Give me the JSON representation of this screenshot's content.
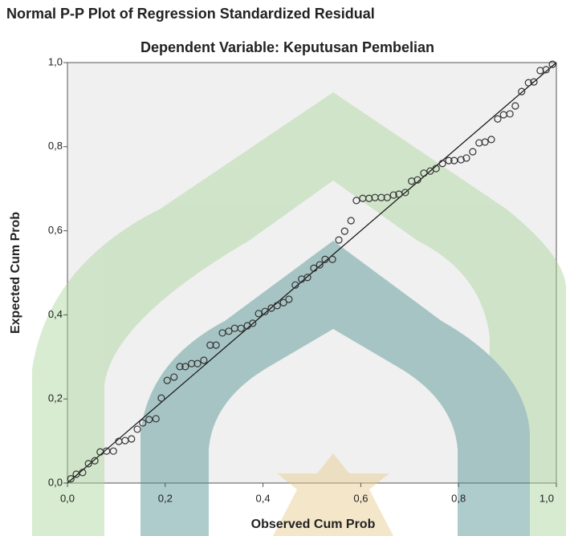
{
  "chart_data": {
    "type": "scatter",
    "title": "Normal P-P Plot of Regression Standardized Residual",
    "subtitle": "Dependent Variable: Keputusan Pembelian",
    "x_label": "Observed Cum Prob",
    "y_label": "Expected Cum Prob",
    "xlim": [
      0,
      1
    ],
    "ylim": [
      0,
      1
    ],
    "xticks": [
      {
        "value": 0,
        "label": "0,0"
      },
      {
        "value": 0.2,
        "label": "0,2"
      },
      {
        "value": 0.4,
        "label": "0,4"
      },
      {
        "value": 0.6,
        "label": "0,6"
      },
      {
        "value": 0.8,
        "label": "0,8"
      },
      {
        "value": 1,
        "label": "1,0"
      }
    ],
    "yticks": [
      {
        "value": 0,
        "label": "0,0"
      },
      {
        "value": 0.2,
        "label": "0,2"
      },
      {
        "value": 0.4,
        "label": "0,4"
      },
      {
        "value": 0.6,
        "label": "0,6"
      },
      {
        "value": 0.8,
        "label": "0,8"
      },
      {
        "value": 1,
        "label": "1,0"
      }
    ],
    "color": "#333333",
    "x": [
      0.007,
      0.018,
      0.031,
      0.043,
      0.056,
      0.067,
      0.08,
      0.094,
      0.105,
      0.118,
      0.131,
      0.143,
      0.154,
      0.167,
      0.181,
      0.192,
      0.204,
      0.218,
      0.23,
      0.241,
      0.254,
      0.266,
      0.279,
      0.292,
      0.304,
      0.317,
      0.33,
      0.342,
      0.355,
      0.368,
      0.379,
      0.391,
      0.404,
      0.417,
      0.429,
      0.442,
      0.453,
      0.466,
      0.479,
      0.491,
      0.504,
      0.516,
      0.527,
      0.542,
      0.555,
      0.567,
      0.58,
      0.591,
      0.604,
      0.617,
      0.629,
      0.642,
      0.654,
      0.667,
      0.678,
      0.691,
      0.704,
      0.716,
      0.729,
      0.742,
      0.754,
      0.767,
      0.78,
      0.791,
      0.805,
      0.816,
      0.829,
      0.842,
      0.854,
      0.867,
      0.88,
      0.892,
      0.905,
      0.916,
      0.929,
      0.943,
      0.954,
      0.967,
      0.979,
      0.992
    ],
    "values": [
      0.01,
      0.021,
      0.025,
      0.046,
      0.053,
      0.074,
      0.076,
      0.076,
      0.099,
      0.101,
      0.105,
      0.128,
      0.143,
      0.151,
      0.153,
      0.202,
      0.244,
      0.252,
      0.277,
      0.277,
      0.284,
      0.284,
      0.292,
      0.328,
      0.328,
      0.357,
      0.361,
      0.368,
      0.368,
      0.374,
      0.38,
      0.403,
      0.408,
      0.416,
      0.422,
      0.429,
      0.437,
      0.471,
      0.485,
      0.489,
      0.511,
      0.519,
      0.532,
      0.532,
      0.578,
      0.599,
      0.624,
      0.672,
      0.677,
      0.677,
      0.679,
      0.679,
      0.679,
      0.685,
      0.687,
      0.691,
      0.718,
      0.721,
      0.737,
      0.742,
      0.748,
      0.76,
      0.767,
      0.767,
      0.769,
      0.773,
      0.788,
      0.809,
      0.811,
      0.817,
      0.866,
      0.876,
      0.878,
      0.897,
      0.931,
      0.952,
      0.954,
      0.981,
      0.983,
      0.996
    ]
  }
}
